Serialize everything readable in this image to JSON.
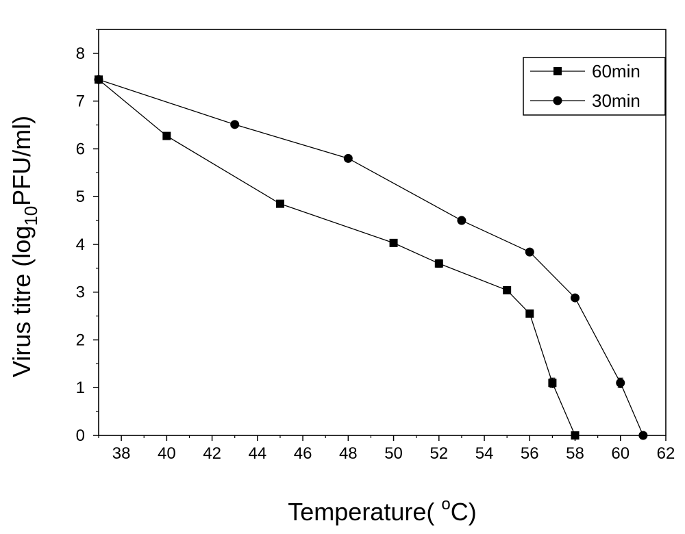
{
  "chart_data": {
    "type": "line",
    "xlabel": "Temperature( °C)",
    "xlabel_parts": {
      "main": "Temperature( ",
      "sup": "o",
      "unit": "C)"
    },
    "ylabel": "Virus titre (log10PFU/ml)",
    "ylabel_parts": {
      "main": "Virus titre (log",
      "sub": "10",
      "rest": "PFU/ml)"
    },
    "xlim": [
      37,
      62
    ],
    "ylim": [
      0,
      8.5
    ],
    "xticks": [
      38,
      40,
      42,
      44,
      46,
      48,
      50,
      52,
      54,
      56,
      58,
      60,
      62
    ],
    "yticks": [
      0,
      1,
      2,
      3,
      4,
      5,
      6,
      7,
      8
    ],
    "legend_position": "top-right",
    "grid": false,
    "series": [
      {
        "name": "60min",
        "marker": "square",
        "color": "#000000",
        "x": [
          37,
          40,
          45,
          50,
          52,
          55,
          56,
          57,
          58
        ],
        "y": [
          7.45,
          6.27,
          4.85,
          4.03,
          3.6,
          3.04,
          2.55,
          1.1,
          0
        ],
        "err": [
          0,
          0,
          0,
          0,
          0.08,
          0,
          0,
          0.1,
          0
        ]
      },
      {
        "name": "30min",
        "marker": "circle",
        "color": "#000000",
        "x": [
          37,
          43,
          48,
          53,
          56,
          58,
          60,
          61
        ],
        "y": [
          7.45,
          6.51,
          5.8,
          4.5,
          3.84,
          2.88,
          1.1,
          0
        ],
        "err": [
          0,
          0,
          0,
          0,
          0,
          0,
          0.1,
          0
        ]
      }
    ]
  }
}
